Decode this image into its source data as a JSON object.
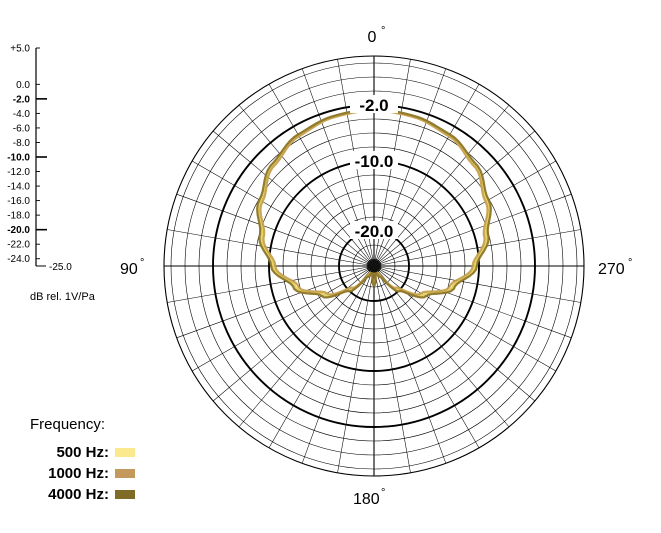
{
  "chart_data": {
    "type": "polar",
    "angle_labels": [
      "0",
      "90",
      "180",
      "270"
    ],
    "ring_labels": [
      "-2.0",
      "-10.0",
      "-20.0"
    ],
    "rlim": [
      -25,
      5
    ],
    "scale": {
      "ticks": [
        {
          "label": "+5.0",
          "db": 5,
          "major": false
        },
        {
          "label": "0.0",
          "db": 0,
          "major": false
        },
        {
          "label": "-2.0",
          "db": -2,
          "major": true
        },
        {
          "label": "-4.0",
          "db": -4,
          "major": false
        },
        {
          "label": "-6.0",
          "db": -6,
          "major": false
        },
        {
          "label": "-8.0",
          "db": -8,
          "major": false
        },
        {
          "label": "-10.0",
          "db": -10,
          "major": true
        },
        {
          "label": "-12.0",
          "db": -12,
          "major": false
        },
        {
          "label": "-14.0",
          "db": -14,
          "major": false
        },
        {
          "label": "-16.0",
          "db": -16,
          "major": false
        },
        {
          "label": "-18.0",
          "db": -18,
          "major": false
        },
        {
          "label": "-20.0",
          "db": -20,
          "major": true
        },
        {
          "label": "-22.0",
          "db": -22,
          "major": false
        },
        {
          "label": "-24.0",
          "db": -24,
          "major": false
        }
      ],
      "min_label": "-25.0",
      "unit_label": "dB rel. 1V/Pa"
    },
    "series": [
      {
        "name": "500 Hz",
        "color": "#f2df6e",
        "stroke": "#e7d25a",
        "points": [
          [
            0,
            -2.7
          ],
          [
            15,
            -2.9
          ],
          [
            30,
            -3.4
          ],
          [
            45,
            -4.6
          ],
          [
            60,
            -6.3
          ],
          [
            75,
            -8.4
          ],
          [
            90,
            -10.6
          ],
          [
            105,
            -13.4
          ],
          [
            120,
            -16.8
          ],
          [
            135,
            -20.2
          ],
          [
            150,
            -23.6
          ],
          [
            165,
            -24.3
          ],
          [
            180,
            -22.4
          ]
        ]
      },
      {
        "name": "1000 Hz",
        "color": "#c9a45a",
        "stroke": "#c6a14e",
        "points": [
          [
            0,
            -2.8
          ],
          [
            15,
            -3.0
          ],
          [
            30,
            -3.6
          ],
          [
            45,
            -4.8
          ],
          [
            60,
            -6.6
          ],
          [
            75,
            -8.7
          ],
          [
            90,
            -10.9
          ],
          [
            105,
            -13.8
          ],
          [
            120,
            -17.2
          ],
          [
            135,
            -20.6
          ],
          [
            150,
            -23.9
          ],
          [
            165,
            -24.4
          ],
          [
            180,
            -22.6
          ]
        ]
      },
      {
        "name": "4000 Hz",
        "color": "#7e6a1f",
        "stroke": "#8d7628",
        "points": [
          [
            0,
            -2.6
          ],
          [
            15,
            -2.8
          ],
          [
            30,
            -3.3
          ],
          [
            45,
            -4.4
          ],
          [
            60,
            -6.1
          ],
          [
            75,
            -8.1
          ],
          [
            90,
            -10.3
          ],
          [
            105,
            -13.1
          ],
          [
            120,
            -16.4
          ],
          [
            135,
            -19.9
          ],
          [
            150,
            -23.2
          ],
          [
            165,
            -24.1
          ],
          [
            180,
            -22.2
          ]
        ]
      }
    ]
  },
  "legend": {
    "title": "Frequency:",
    "items": [
      {
        "label": "500 Hz:",
        "color": "#fbe98e"
      },
      {
        "label": "1000 Hz:",
        "color": "#c49a5c"
      },
      {
        "label": "4000 Hz:",
        "color": "#7f6a26"
      }
    ]
  }
}
